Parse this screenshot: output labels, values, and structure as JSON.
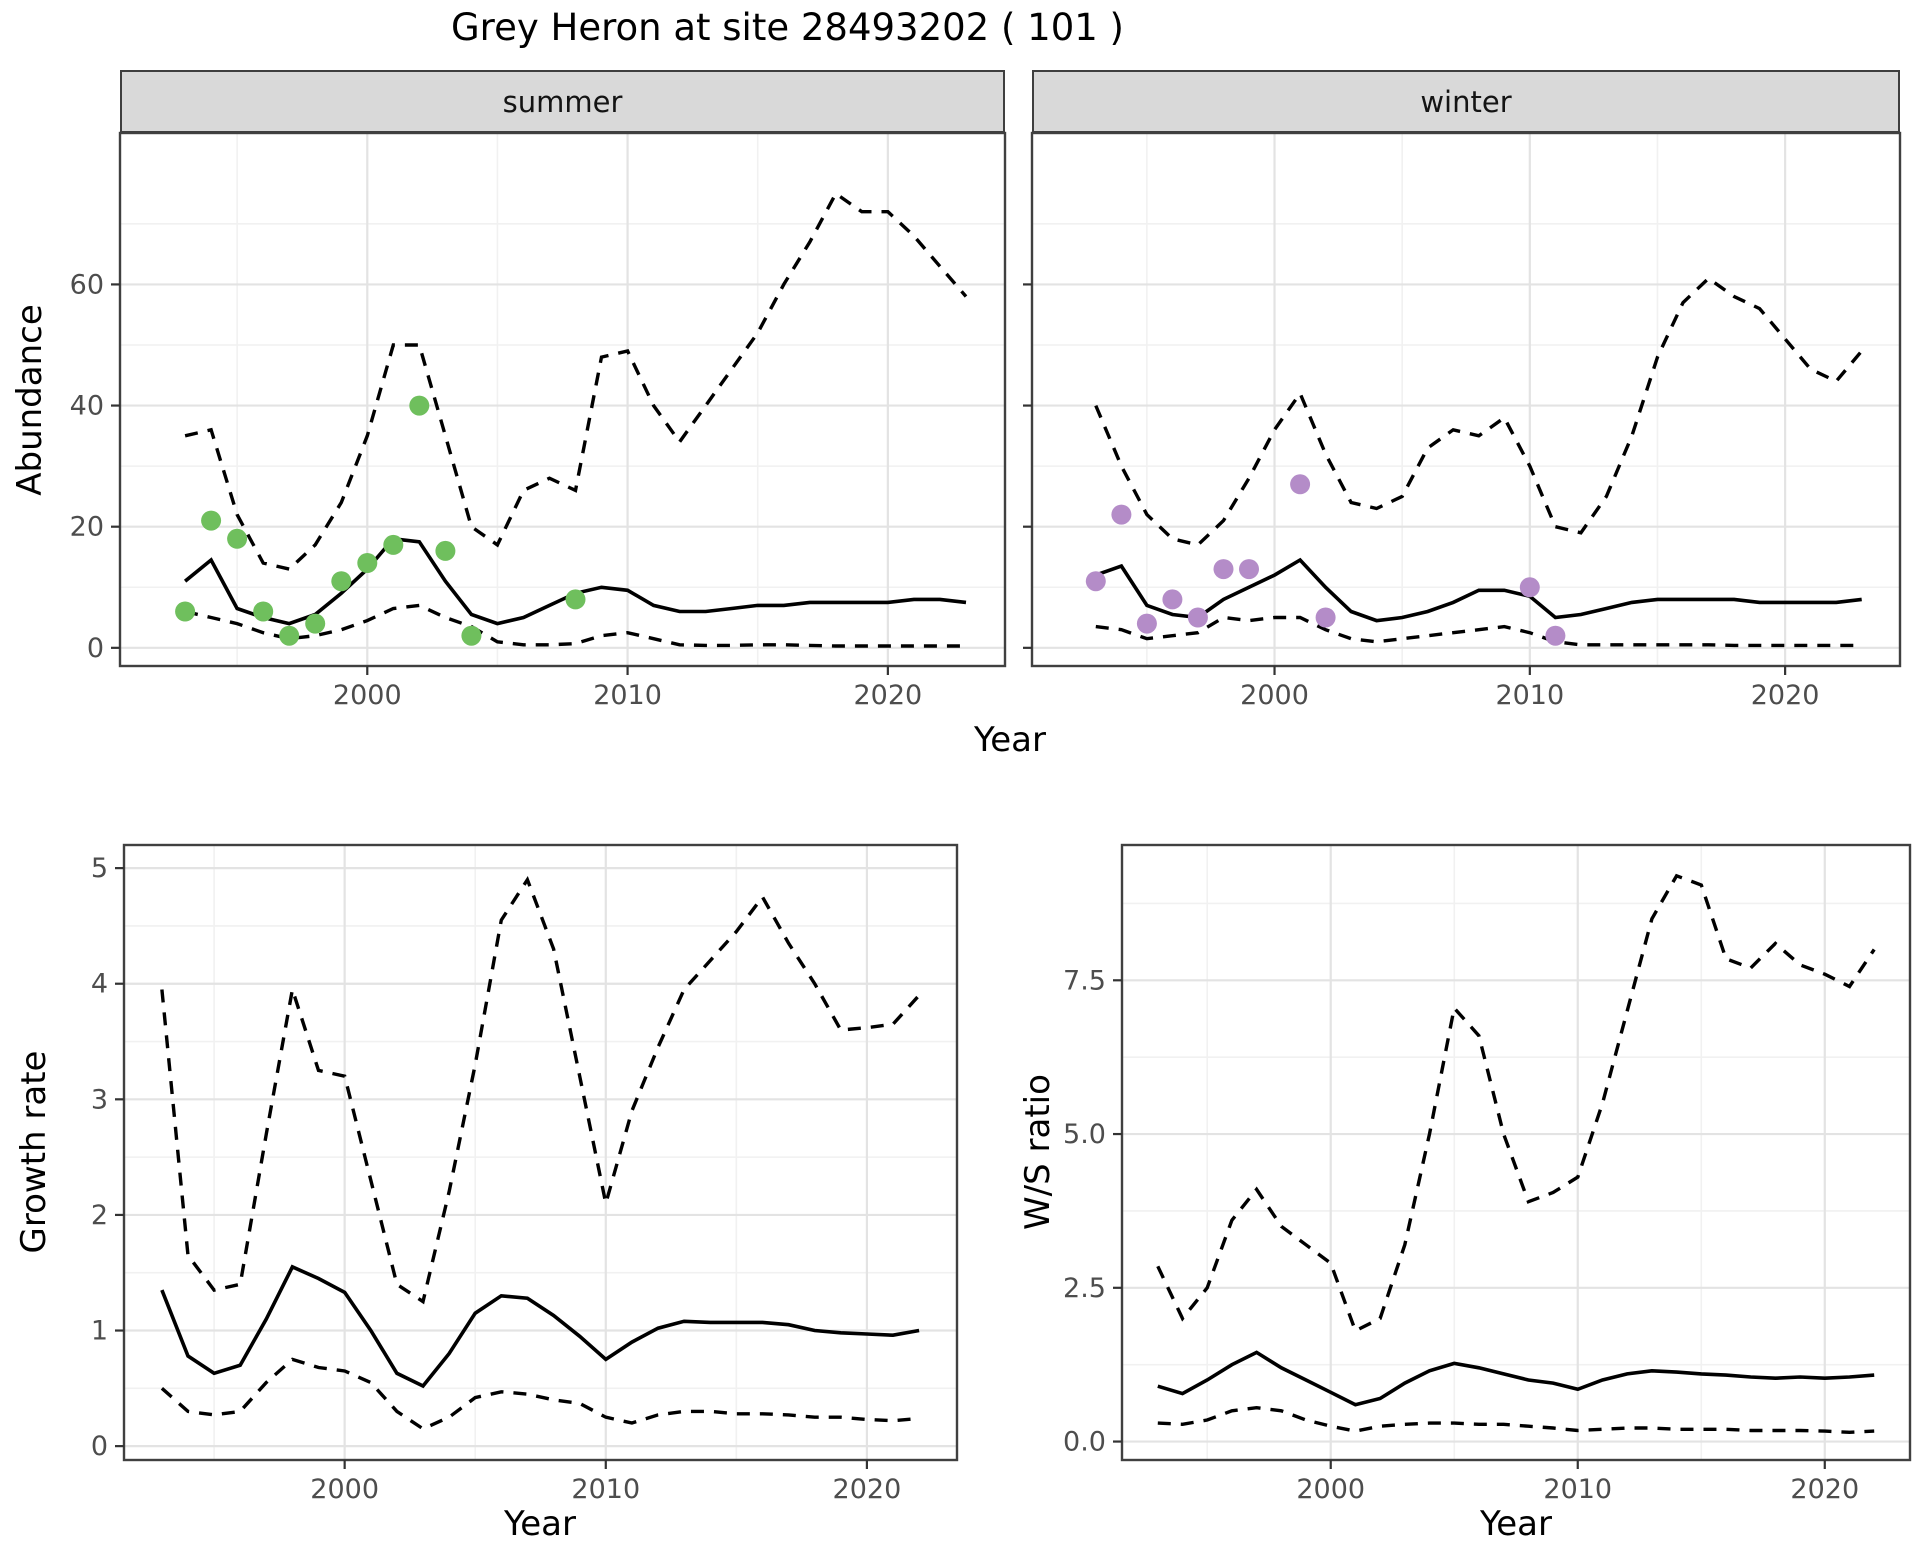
{
  "title": "Grey Heron at site 28493202 ( 101 )",
  "colors": {
    "summer_point": "#6fbf5d",
    "winter_point": "#b48cc8",
    "line": "#000000",
    "strip_bg": "#d9d9d9",
    "grid_major": "#e3e3e3",
    "grid_minor": "#f1f1f1",
    "panel_border": "#404040",
    "tick_mark": "#333333",
    "tick_text": "#4d4d4d"
  },
  "chart_data": [
    {
      "id": "abundance-summer",
      "type": "line",
      "facet_label": "summer",
      "xlabel": "Year",
      "ylabel": "Abundance",
      "x_range": [
        1990.5,
        2024.5
      ],
      "y_range": [
        -3,
        85
      ],
      "x_ticks": [
        2000,
        2010,
        2020
      ],
      "x_tick_labels": [
        "2000",
        "2010",
        "2020"
      ],
      "x_minor": [
        1995,
        2005,
        2015
      ],
      "y_ticks": [
        0,
        20,
        40,
        60
      ],
      "y_tick_labels": [
        "0",
        "20",
        "40",
        "60"
      ],
      "y_minor": [
        10,
        30,
        50,
        70
      ],
      "x": [
        1993,
        1994,
        1995,
        1996,
        1997,
        1998,
        1999,
        2000,
        2001,
        2002,
        2003,
        2004,
        2005,
        2006,
        2007,
        2008,
        2009,
        2010,
        2011,
        2012,
        2013,
        2014,
        2015,
        2016,
        2017,
        2018,
        2019,
        2020,
        2021,
        2022,
        2023
      ],
      "series": [
        {
          "name": "fit",
          "style": "solid",
          "values": [
            11,
            14.5,
            6.5,
            5,
            4,
            5.5,
            9,
            13,
            18,
            17.5,
            11,
            5.5,
            4,
            5,
            7,
            9,
            10,
            9.5,
            7,
            6,
            6,
            6.5,
            7,
            7,
            7.5,
            7.5,
            7.5,
            7.5,
            8,
            8,
            7.5
          ]
        },
        {
          "name": "upper_ci",
          "style": "dashed",
          "values": [
            35,
            36,
            22,
            14,
            13,
            17,
            24,
            35,
            50,
            50,
            35,
            20,
            17,
            26,
            28,
            26,
            48,
            49,
            40,
            34,
            40,
            46,
            52,
            60,
            67,
            75,
            72,
            72,
            68,
            63,
            58
          ]
        },
        {
          "name": "lower_ci",
          "style": "dashed",
          "values": [
            6,
            5,
            4,
            2.5,
            1.5,
            2,
            3,
            4.5,
            6.5,
            7,
            5,
            3.5,
            1,
            0.5,
            0.5,
            0.7,
            2,
            2.5,
            1.5,
            0.5,
            0.4,
            0.4,
            0.5,
            0.5,
            0.4,
            0.3,
            0.3,
            0.3,
            0.3,
            0.3,
            0.3
          ]
        }
      ],
      "points": {
        "name": "observed-summer",
        "color_key": "summer_point",
        "x": [
          1993,
          1994,
          1995,
          1996,
          1997,
          1998,
          1999,
          2000,
          2001,
          2002,
          2003,
          2004,
          2008
        ],
        "values": [
          6,
          21,
          18,
          6,
          2,
          4,
          11,
          14,
          17,
          40,
          16,
          2,
          8
        ]
      }
    },
    {
      "id": "abundance-winter",
      "type": "line",
      "facet_label": "winter",
      "xlabel": "Year",
      "ylabel": "Abundance",
      "x_range": [
        1990.5,
        2024.5
      ],
      "y_range": [
        -3,
        85
      ],
      "x_ticks": [
        2000,
        2010,
        2020
      ],
      "x_tick_labels": [
        "2000",
        "2010",
        "2020"
      ],
      "x_minor": [
        1995,
        2005,
        2015
      ],
      "y_ticks": [
        0,
        20,
        40,
        60
      ],
      "y_tick_labels": [
        "0",
        "20",
        "40",
        "60"
      ],
      "y_minor": [
        10,
        30,
        50,
        70
      ],
      "x": [
        1993,
        1994,
        1995,
        1996,
        1997,
        1998,
        1999,
        2000,
        2001,
        2002,
        2003,
        2004,
        2005,
        2006,
        2007,
        2008,
        2009,
        2010,
        2011,
        2012,
        2013,
        2014,
        2015,
        2016,
        2017,
        2018,
        2019,
        2020,
        2021,
        2022,
        2023
      ],
      "series": [
        {
          "name": "fit",
          "style": "solid",
          "values": [
            12,
            13.5,
            7,
            5.5,
            5,
            8,
            10,
            12,
            14.5,
            10,
            6,
            4.5,
            5,
            6,
            7.5,
            9.5,
            9.5,
            8.5,
            5,
            5.5,
            6.5,
            7.5,
            8,
            8,
            8,
            8,
            7.5,
            7.5,
            7.5,
            7.5,
            8
          ]
        },
        {
          "name": "upper_ci",
          "style": "dashed",
          "values": [
            40,
            30,
            22,
            18,
            17,
            21,
            28,
            36,
            42,
            32,
            24,
            23,
            25,
            33,
            36,
            35,
            38,
            30,
            20,
            19,
            25,
            35,
            48,
            57,
            61,
            58,
            56,
            51,
            46,
            44,
            49
          ]
        },
        {
          "name": "lower_ci",
          "style": "dashed",
          "values": [
            3.5,
            3,
            1.5,
            2,
            2.5,
            5,
            4.5,
            5,
            5,
            3,
            1.5,
            1,
            1.5,
            2,
            2.5,
            3,
            3.5,
            2.5,
            1,
            0.5,
            0.5,
            0.5,
            0.5,
            0.5,
            0.5,
            0.4,
            0.4,
            0.4,
            0.4,
            0.4,
            0.4
          ]
        }
      ],
      "points": {
        "name": "observed-winter",
        "color_key": "winter_point",
        "x": [
          1993,
          1994,
          1995,
          1996,
          1997,
          1998,
          1999,
          2001,
          2002,
          2010,
          2011
        ],
        "values": [
          11,
          22,
          4,
          8,
          5,
          13,
          13,
          27,
          5,
          10,
          2
        ]
      }
    },
    {
      "id": "growth-rate",
      "type": "line",
      "facet_label": "",
      "xlabel": "Year",
      "ylabel": "Growth rate",
      "x_range": [
        1991.55,
        2023.45
      ],
      "y_range": [
        -0.12,
        5.2
      ],
      "x_ticks": [
        2000,
        2010,
        2020
      ],
      "x_tick_labels": [
        "2000",
        "2010",
        "2020"
      ],
      "x_minor": [
        1995,
        2005,
        2015
      ],
      "y_ticks": [
        0,
        1,
        2,
        3,
        4,
        5
      ],
      "y_tick_labels": [
        "0",
        "1",
        "2",
        "3",
        "4",
        "5"
      ],
      "y_minor": [
        0.5,
        1.5,
        2.5,
        3.5,
        4.5
      ],
      "x": [
        1993,
        1994,
        1995,
        1996,
        1997,
        1998,
        1999,
        2000,
        2001,
        2002,
        2003,
        2004,
        2005,
        2006,
        2007,
        2008,
        2009,
        2010,
        2011,
        2012,
        2013,
        2014,
        2015,
        2016,
        2017,
        2018,
        2019,
        2020,
        2021,
        2022
      ],
      "series": [
        {
          "name": "fit",
          "style": "solid",
          "values": [
            1.35,
            0.78,
            0.63,
            0.7,
            1.1,
            1.55,
            1.45,
            1.33,
            1.0,
            0.63,
            0.52,
            0.8,
            1.15,
            1.3,
            1.28,
            1.13,
            0.95,
            0.75,
            0.9,
            1.02,
            1.08,
            1.07,
            1.07,
            1.07,
            1.05,
            1.0,
            0.98,
            0.97,
            0.96,
            1.0
          ]
        },
        {
          "name": "upper_ci",
          "style": "dashed",
          "values": [
            3.95,
            1.65,
            1.35,
            1.4,
            2.7,
            3.95,
            3.25,
            3.2,
            2.3,
            1.4,
            1.25,
            2.2,
            3.3,
            4.55,
            4.9,
            4.3,
            3.2,
            2.1,
            2.9,
            3.45,
            3.95,
            4.2,
            4.45,
            4.75,
            4.35,
            4.0,
            3.6,
            3.62,
            3.65,
            3.9
          ]
        },
        {
          "name": "lower_ci",
          "style": "dashed",
          "values": [
            0.5,
            0.3,
            0.27,
            0.3,
            0.55,
            0.75,
            0.68,
            0.65,
            0.55,
            0.3,
            0.15,
            0.25,
            0.42,
            0.47,
            0.45,
            0.4,
            0.37,
            0.25,
            0.2,
            0.27,
            0.3,
            0.3,
            0.28,
            0.28,
            0.27,
            0.25,
            0.25,
            0.23,
            0.22,
            0.24
          ]
        }
      ],
      "points": null
    },
    {
      "id": "ws-ratio",
      "type": "line",
      "facet_label": "",
      "xlabel": "Year",
      "ylabel": "W/S ratio",
      "x_range": [
        1991.55,
        2023.45
      ],
      "y_range": [
        -0.3,
        9.7
      ],
      "x_ticks": [
        2000,
        2010,
        2020
      ],
      "x_tick_labels": [
        "2000",
        "2010",
        "2020"
      ],
      "x_minor": [
        1995,
        2005,
        2015
      ],
      "y_ticks": [
        0,
        2.5,
        5,
        7.5
      ],
      "y_tick_labels": [
        "0.0",
        "2.5",
        "5.0",
        "7.5"
      ],
      "y_minor": [
        1.25,
        3.75,
        6.25,
        8.75
      ],
      "x": [
        1993,
        1994,
        1995,
        1996,
        1997,
        1998,
        1999,
        2000,
        2001,
        2002,
        2003,
        2004,
        2005,
        2006,
        2007,
        2008,
        2009,
        2010,
        2011,
        2012,
        2013,
        2014,
        2015,
        2016,
        2017,
        2018,
        2019,
        2020,
        2021,
        2022
      ],
      "series": [
        {
          "name": "fit",
          "style": "solid",
          "values": [
            0.9,
            0.78,
            1.0,
            1.25,
            1.45,
            1.2,
            1.0,
            0.8,
            0.6,
            0.7,
            0.95,
            1.15,
            1.27,
            1.2,
            1.1,
            1.0,
            0.95,
            0.85,
            1.0,
            1.1,
            1.15,
            1.13,
            1.1,
            1.08,
            1.05,
            1.03,
            1.05,
            1.03,
            1.05,
            1.08
          ]
        },
        {
          "name": "upper_ci",
          "style": "dashed",
          "values": [
            2.85,
            2.0,
            2.5,
            3.6,
            4.1,
            3.5,
            3.2,
            2.9,
            1.8,
            2.0,
            3.2,
            5.0,
            7.05,
            6.6,
            5.0,
            3.9,
            4.05,
            4.3,
            5.5,
            7.0,
            8.5,
            9.2,
            9.05,
            7.85,
            7.7,
            8.1,
            7.75,
            7.6,
            7.4,
            8.0
          ]
        },
        {
          "name": "lower_ci",
          "style": "dashed",
          "values": [
            0.3,
            0.28,
            0.35,
            0.5,
            0.55,
            0.5,
            0.35,
            0.25,
            0.17,
            0.25,
            0.28,
            0.3,
            0.3,
            0.28,
            0.28,
            0.25,
            0.22,
            0.18,
            0.2,
            0.22,
            0.22,
            0.2,
            0.2,
            0.2,
            0.18,
            0.18,
            0.18,
            0.17,
            0.15,
            0.17
          ]
        }
      ],
      "points": null
    }
  ]
}
